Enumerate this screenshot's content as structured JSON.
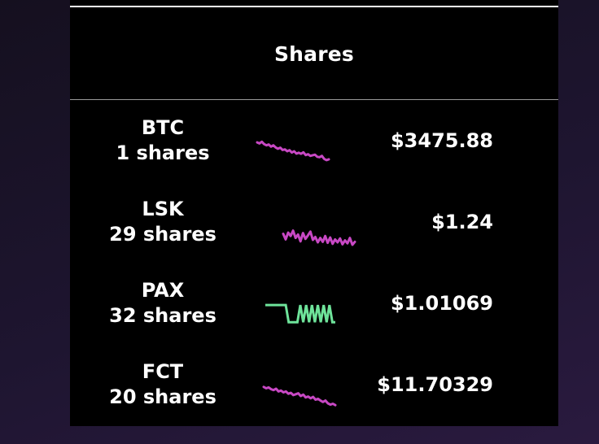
{
  "header": {
    "title": "Shares"
  },
  "holdings": [
    {
      "symbol": "BTC",
      "shares": "1 shares",
      "price": "$3475.88",
      "trend_color": "#c848c4",
      "trend": [
        0.08,
        0.13,
        0.05,
        0.16,
        0.22,
        0.18,
        0.28,
        0.22,
        0.32,
        0.38,
        0.33,
        0.44,
        0.41,
        0.5,
        0.45,
        0.56,
        0.5,
        0.61,
        0.57,
        0.62,
        0.55,
        0.68,
        0.64,
        0.72,
        0.69,
        0.66,
        0.76,
        0.78,
        0.72,
        0.86,
        0.92,
        0.88
      ]
    },
    {
      "symbol": "LSK",
      "shares": "29 shares",
      "price": "$1.24",
      "trend_color": "#c848c4",
      "trend": [
        0.55,
        0.78,
        0.5,
        0.64,
        0.42,
        0.72,
        0.58,
        0.86,
        0.52,
        0.76,
        0.62,
        0.46,
        0.8,
        0.68,
        0.9,
        0.72,
        0.88,
        0.64,
        0.92,
        0.7,
        0.96,
        0.78,
        0.9,
        0.74,
        0.98,
        0.82,
        0.94,
        0.72,
        1.0,
        0.88
      ]
    },
    {
      "symbol": "PAX",
      "shares": "32 shares",
      "price": "$1.01069",
      "trend_color": "#6ee39a",
      "trend": [
        0.12,
        0.12,
        0.12,
        0.12,
        0.12,
        0.12,
        0.12,
        0.12,
        0.74,
        0.74,
        0.74,
        0.74,
        0.12,
        0.74,
        0.12,
        0.74,
        0.12,
        0.74,
        0.12,
        0.74,
        0.12,
        0.74,
        0.12,
        0.74,
        0.74
      ]
    },
    {
      "symbol": "FCT",
      "shares": "20 shares",
      "price": "$11.70329",
      "trend_color": "#c848c4",
      "trend": [
        0.1,
        0.16,
        0.12,
        0.2,
        0.24,
        0.18,
        0.3,
        0.26,
        0.34,
        0.3,
        0.4,
        0.36,
        0.46,
        0.42,
        0.38,
        0.5,
        0.44,
        0.56,
        0.52,
        0.6,
        0.54,
        0.66,
        0.62,
        0.7,
        0.76,
        0.7,
        0.82,
        0.88,
        0.84,
        0.9
      ]
    }
  ]
}
